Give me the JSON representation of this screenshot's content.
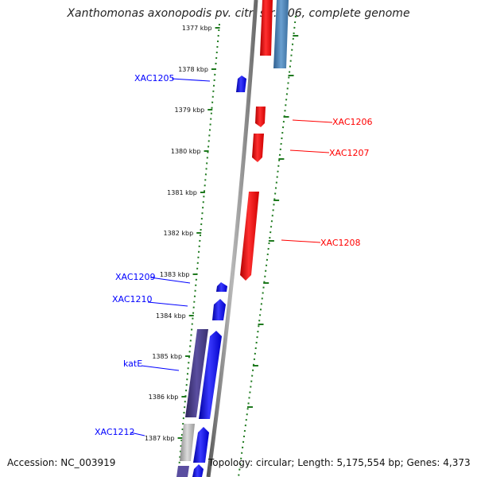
{
  "title": "Xanthomonas axonopodis pv. citri str. 306, complete genome",
  "footer": {
    "accession": "Accession: NC_003919",
    "topology": "Topology: circular; Length: 5,175,554 bp; Genes: 4,373"
  },
  "scale_ticks": [
    "1377 kbp",
    "1378 kbp",
    "1379 kbp",
    "1380 kbp",
    "1381 kbp",
    "1382 kbp",
    "1383 kbp",
    "1384 kbp",
    "1385 kbp",
    "1386 kbp",
    "1387 kbp"
  ],
  "genes": [
    {
      "name": "XAC1205",
      "strand": "forward"
    },
    {
      "name": "XAC1206",
      "strand": "reverse"
    },
    {
      "name": "XAC1207",
      "strand": "reverse"
    },
    {
      "name": "XAC1208",
      "strand": "reverse"
    },
    {
      "name": "XAC1209",
      "strand": "forward"
    },
    {
      "name": "XAC1210",
      "strand": "forward"
    },
    {
      "name": "katE",
      "strand": "forward"
    },
    {
      "name": "XAC1212",
      "strand": "forward"
    }
  ],
  "colors": {
    "forward_gene": "#0000ff",
    "reverse_gene": "#ff0000",
    "backbone": "#808080",
    "tick": "#1f7a1f",
    "cds_top": "#4682b4",
    "cds_band": "#483d8b",
    "cds_grey": "#b0b0b0"
  }
}
